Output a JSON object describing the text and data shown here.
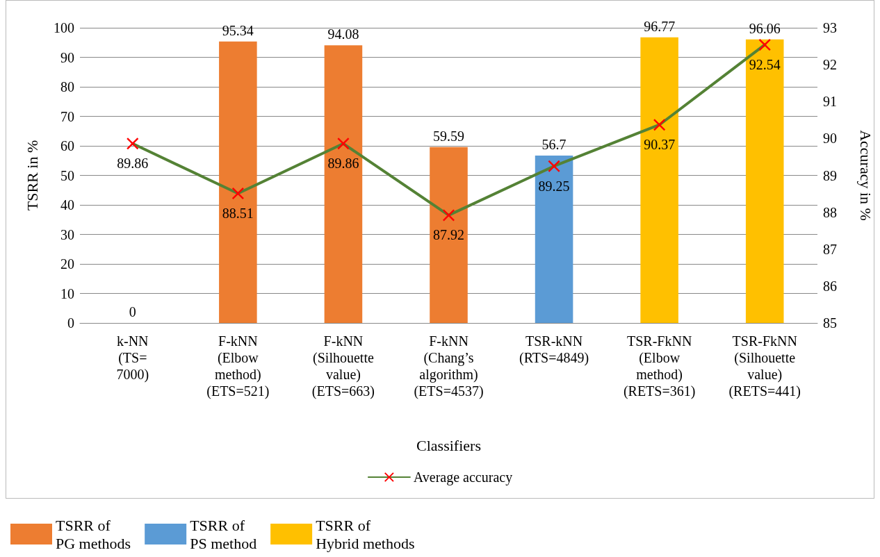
{
  "chart_data": {
    "type": "bar",
    "categories": [
      "k-NN\n(TS=\n7000)",
      "F-kNN\n(Elbow\nmethod)\n(ETS=521)",
      "F-kNN\n(Silhouette\nvalue)\n(ETS=663)",
      "F-kNN\n(Chang’s\nalgorithm)\n(ETS=4537)",
      "TSR-kNN\n(RTS=4849)",
      "TSR-FkNN\n(Elbow\nmethod)\n(RETS=361)",
      "TSR-FkNN\n(Silhouette\nvalue)\n(RETS=441)"
    ],
    "series": [
      {
        "name": "TSRR of\nPG methods",
        "color": "#ed7d31",
        "values": [
          0,
          95.34,
          94.08,
          59.59,
          null,
          null,
          null
        ]
      },
      {
        "name": "TSRR of\nPS method",
        "color": "#5b9bd5",
        "values": [
          null,
          null,
          null,
          null,
          56.7,
          null,
          null
        ]
      },
      {
        "name": "TSRR of\nHybrid methods",
        "color": "#ffc000",
        "values": [
          null,
          null,
          null,
          null,
          null,
          96.77,
          96.06
        ]
      },
      {
        "name": "Average accuracy",
        "type": "line",
        "axis": "y2",
        "color": "#548235",
        "marker": "cross",
        "values": [
          89.86,
          88.51,
          89.86,
          87.92,
          89.25,
          90.37,
          92.54
        ]
      }
    ],
    "xlabel": "Classifiers",
    "ylabel": "TSRR in %",
    "y2label": "Accuracy in %",
    "ylim": [
      0,
      100
    ],
    "yticks": [
      0,
      10,
      20,
      30,
      40,
      50,
      60,
      70,
      80,
      90,
      100
    ],
    "y2lim": [
      85,
      93
    ],
    "y2ticks": [
      85,
      86,
      87,
      88,
      89,
      90,
      91,
      92,
      93
    ],
    "grid": "y",
    "legend": "bottom",
    "data_labels": true
  }
}
